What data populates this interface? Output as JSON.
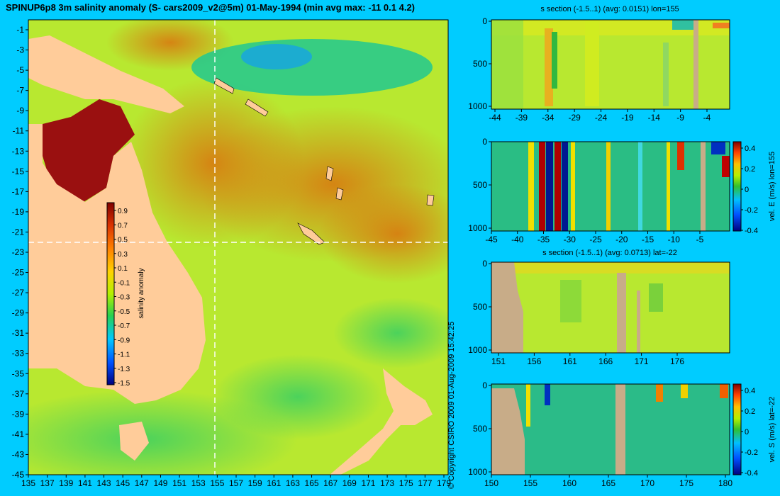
{
  "header": {
    "title": "SPINUP6p8 3m salinity anomaly (S- cars2009_v2@5m) 01-May-1994 (min avg max: -11 0.1 4.2)"
  },
  "copyright": "© Copyright CSIRO 2009   01-Aug-2009 15:42:25",
  "chart_data": [
    {
      "type": "heatmap",
      "name": "salinity-map",
      "title": "SPINUP6p8 3m salinity anomaly (S- cars2009_v2@5m) 01-May-1994 (min avg max: -11 0.1 4.2)",
      "stats": {
        "min": -11,
        "avg": 0.1,
        "max": 4.2
      },
      "x_ticks": [
        135,
        137,
        139,
        141,
        143,
        145,
        147,
        149,
        151,
        153,
        155,
        157,
        159,
        161,
        163,
        165,
        167,
        169,
        171,
        173,
        175,
        177,
        179
      ],
      "y_ticks": [
        -1,
        -3,
        -5,
        -7,
        -9,
        -11,
        -13,
        -15,
        -17,
        -19,
        -21,
        -23,
        -25,
        -27,
        -29,
        -31,
        -33,
        -35,
        -37,
        -39,
        -41,
        -43,
        -45
      ],
      "xlim": [
        135,
        180
      ],
      "ylim": [
        -45,
        0
      ],
      "colorbar": {
        "label": "salinity anomaly",
        "ticks": [
          "0.9",
          "0.7",
          "0.5",
          "0.3",
          "0.1",
          "-0.1",
          "-0.3",
          "-0.5",
          "-0.7",
          "-0.9",
          "-1.1",
          "-1.3",
          "-1.5"
        ],
        "range": [
          -1.5,
          1.0
        ]
      },
      "section_lines": {
        "lon": 155,
        "lat": -22
      }
    },
    {
      "type": "heatmap",
      "name": "s-section-lon",
      "title": "s section (-1.5..1) (avg: 0.0151) lon=155",
      "x_ticks": [
        "-44",
        "-39",
        "-34",
        "-29",
        "-24",
        "-19",
        "-14",
        "-9",
        "-4"
      ],
      "y_ticks": [
        "0",
        "500",
        "1000"
      ]
    },
    {
      "type": "heatmap",
      "name": "vel-e-section",
      "title": "",
      "x_ticks": [
        "-45",
        "-40",
        "-35",
        "-30",
        "-25",
        "-20",
        "-15",
        "-10",
        "-5"
      ],
      "y_ticks": [
        "0",
        "500",
        "1000"
      ],
      "colorbar": {
        "label": "vel. E (m/s) lon=155",
        "ticks": [
          "0.4",
          "0.2",
          "0",
          "-0.2",
          "-0.4"
        ]
      }
    },
    {
      "type": "heatmap",
      "name": "s-section-lat",
      "title": "s section (-1.5..1) (avg: 0.0713) lat=-22",
      "x_ticks": [
        "151",
        "156",
        "161",
        "166",
        "171",
        "176"
      ],
      "y_ticks": [
        "0",
        "500",
        "1000"
      ]
    },
    {
      "type": "heatmap",
      "name": "vel-s-section",
      "title": "",
      "x_ticks": [
        "150",
        "155",
        "160",
        "165",
        "170",
        "175",
        "180"
      ],
      "y_ticks": [
        "0",
        "500",
        "1000"
      ],
      "colorbar": {
        "label": "vel. S (m/s) lat=-22",
        "ticks": [
          "0.4",
          "0.2",
          "0",
          "-0.2",
          "-0.4"
        ]
      }
    }
  ]
}
